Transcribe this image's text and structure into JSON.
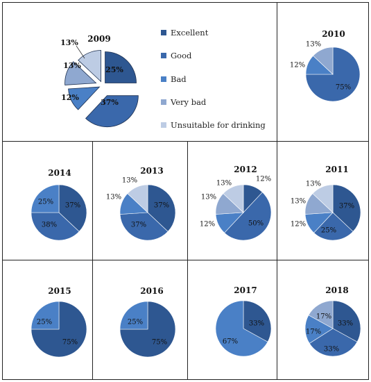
{
  "colors": {
    "Excellent": "#2e5791",
    "Good": "#3a68ab",
    "Bad": "#4a80c6",
    "Very bad": "#8fa8d0",
    "Unsuitable for drinking": "#bdcce4"
  },
  "legend": {
    "items": [
      "Excellent",
      "Good",
      "Bad",
      "Very bad",
      "Unsuitable for drinking"
    ]
  },
  "chart_data": [
    {
      "type": "pie",
      "title": "2009",
      "labels": [
        "Excellent",
        "Good",
        "Bad",
        "Very bad",
        "Unsuitable for drinking"
      ],
      "values": [
        25,
        37,
        12,
        13,
        13
      ],
      "value_labels": [
        "25%",
        "37%",
        "12%",
        "13%",
        "13%"
      ],
      "exploded": true
    },
    {
      "type": "pie",
      "title": "2010",
      "labels": [
        "Good",
        "Bad",
        "Very bad"
      ],
      "values": [
        75,
        12,
        13
      ],
      "value_labels": [
        "75%",
        "12%",
        "13%"
      ]
    },
    {
      "type": "pie",
      "title": "2014",
      "labels": [
        "Excellent",
        "Good",
        "Bad"
      ],
      "values": [
        37,
        38,
        25
      ],
      "value_labels": [
        "37%",
        "38%",
        "25%"
      ]
    },
    {
      "type": "pie",
      "title": "2013",
      "labels": [
        "Excellent",
        "Good",
        "Bad",
        "Unsuitable for drinking"
      ],
      "values": [
        37,
        37,
        13,
        13
      ],
      "value_labels": [
        "37%",
        "37%",
        "13%",
        "13%"
      ]
    },
    {
      "type": "pie",
      "title": "2012",
      "labels": [
        "Excellent",
        "Good",
        "Bad",
        "Very bad",
        "Unsuitable for drinking"
      ],
      "values": [
        12,
        50,
        12,
        13,
        13
      ],
      "value_labels": [
        "12%",
        "50%",
        "12%",
        "13%",
        "13%"
      ]
    },
    {
      "type": "pie",
      "title": "2011",
      "labels": [
        "Excellent",
        "Good",
        "Bad",
        "Very bad",
        "Unsuitable for drinking"
      ],
      "values": [
        37,
        25,
        12,
        13,
        13
      ],
      "value_labels": [
        "37%",
        "25%",
        "12%",
        "13%",
        "13%"
      ]
    },
    {
      "type": "pie",
      "title": "2015",
      "labels": [
        "Excellent",
        "Bad"
      ],
      "values": [
        75,
        25
      ],
      "value_labels": [
        "75%",
        "25%"
      ]
    },
    {
      "type": "pie",
      "title": "2016",
      "labels": [
        "Excellent",
        "Bad"
      ],
      "values": [
        75,
        25
      ],
      "value_labels": [
        "75%",
        "25%"
      ]
    },
    {
      "type": "pie",
      "title": "2017",
      "labels": [
        "Excellent",
        "Bad"
      ],
      "values": [
        33,
        67
      ],
      "value_labels": [
        "33%",
        "67%"
      ]
    },
    {
      "type": "pie",
      "title": "2018",
      "labels": [
        "Excellent",
        "Good",
        "Bad",
        "Very bad"
      ],
      "values": [
        33,
        33,
        17,
        17
      ],
      "value_labels": [
        "33%",
        "33%",
        "17%",
        "17%"
      ]
    }
  ]
}
